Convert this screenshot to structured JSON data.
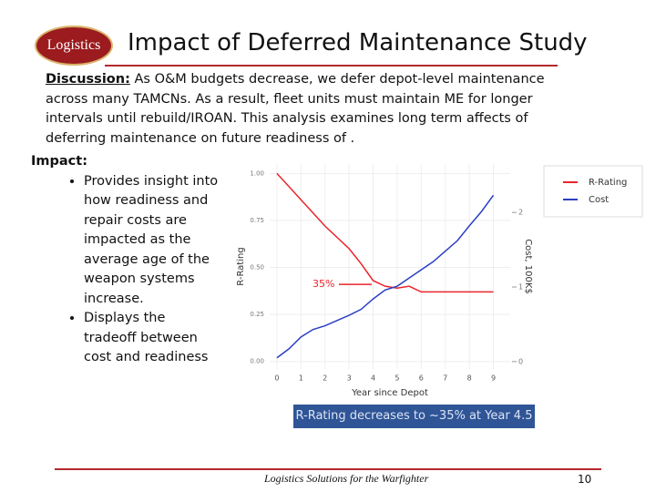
{
  "header": {
    "logo": "Logistics",
    "title": "Impact of Deferred Maintenance Study"
  },
  "discussion": {
    "label": "Discussion:",
    "text": "As O&M budgets decrease, we defer depot-level maintenance across many TAMCNs.  As a result, fleet units must maintain ME for longer intervals until rebuild/IROAN.  This analysis examines long term affects of deferring maintenance on future readiness of ."
  },
  "impact": {
    "label": "Impact:",
    "bullets": [
      "Provides insight into how readiness and repair costs are impacted as the average age of the weapon systems increase.",
      "Displays the tradeoff between cost and readiness"
    ]
  },
  "chart": {
    "type": "line",
    "x_label": "Year since Depot",
    "y_label": "R-Rating",
    "y2_label": "Cost, 100K$",
    "x": [
      0,
      0.5,
      1,
      1.5,
      2,
      2.5,
      3,
      3.5,
      4,
      4.5,
      5,
      5.5,
      6,
      6.5,
      7,
      7.5,
      8,
      8.5,
      9
    ],
    "series": [
      {
        "name": "R-Rating",
        "color": "#e8262b",
        "values": [
          1.0,
          0.93,
          0.86,
          0.79,
          0.72,
          0.66,
          0.6,
          0.52,
          0.43,
          0.4,
          0.39,
          0.4,
          0.37,
          0.37,
          0.37,
          0.37,
          0.37,
          0.37,
          0.37
        ]
      },
      {
        "name": "Cost",
        "color": "#2b3fc4",
        "axis": "y2",
        "values": [
          0.05,
          0.17,
          0.33,
          0.43,
          0.48,
          0.55,
          0.62,
          0.7,
          0.84,
          0.96,
          1.01,
          1.12,
          1.23,
          1.34,
          1.48,
          1.62,
          1.82,
          2.01,
          2.23
        ]
      }
    ],
    "xlim": [
      -0.3,
      9.7
    ],
    "xticks": [
      0,
      1,
      2,
      3,
      4,
      5,
      6,
      7,
      8,
      9
    ],
    "ylim": [
      -0.04,
      1.05
    ],
    "yticks": [
      {
        "value": 0,
        "label": "0.00"
      },
      {
        "value": 0.25,
        "label": "0.25"
      },
      {
        "value": 0.5,
        "label": "0.50"
      },
      {
        "value": 0.75,
        "label": "0.75"
      },
      {
        "value": 1,
        "label": "1.00"
      }
    ],
    "y2lim": [
      -0.1,
      2.65
    ],
    "y2ticks": [
      0,
      1,
      2
    ],
    "grid": true,
    "annotation": {
      "text": "35%",
      "color": "#e8262b"
    },
    "caption": "R-Rating decreases to ~35% at Year 4.5"
  },
  "footer": {
    "text": "Logistics Solutions for the Warfighter",
    "page": "10"
  }
}
